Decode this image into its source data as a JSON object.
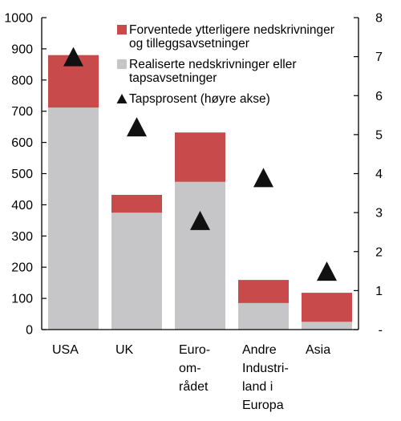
{
  "chart_data": {
    "type": "bar",
    "stacked": true,
    "categories": [
      [
        "USA"
      ],
      [
        "UK"
      ],
      [
        "Euro-",
        "om-",
        "rådet"
      ],
      [
        "Andre",
        "Industri-",
        "land i",
        "Europa"
      ],
      [
        "Asia"
      ]
    ],
    "series": [
      {
        "name": "Realiserte nedskrivninger eller tapsavsetninger",
        "legend_lines": [
          "Realiserte nedskrivninger eller",
          "tapsavsetninger"
        ],
        "color": "#c6c5c7",
        "axis": "left",
        "values": [
          712,
          375,
          474,
          85,
          25
        ]
      },
      {
        "name": "Forventede ytterligere nedskrivninger og tilleggsavsetninger",
        "legend_lines": [
          "Forventede ytterligere nedskrivninger",
          "og tilleggsavsetninger"
        ],
        "color": "#c84a4a",
        "axis": "left",
        "values": [
          168,
          57,
          158,
          74,
          93
        ]
      },
      {
        "name": "Tapsprosent (høyre akse)",
        "legend_lines": [
          "Tapsprosent (høyre akse)"
        ],
        "marker": "triangle",
        "color": "#111111",
        "axis": "right",
        "values": [
          7.0,
          5.2,
          2.8,
          3.9,
          1.5
        ]
      }
    ],
    "ylim_left": [
      0,
      1000
    ],
    "yticks_left": [
      0,
      100,
      200,
      300,
      400,
      500,
      600,
      700,
      800,
      900,
      1000
    ],
    "ylim_right": [
      0,
      8
    ],
    "yticks_right": [
      "-",
      "1",
      "2",
      "3",
      "4",
      "5",
      "6",
      "7",
      "8"
    ],
    "grid": false,
    "legend_position": "top-right"
  }
}
